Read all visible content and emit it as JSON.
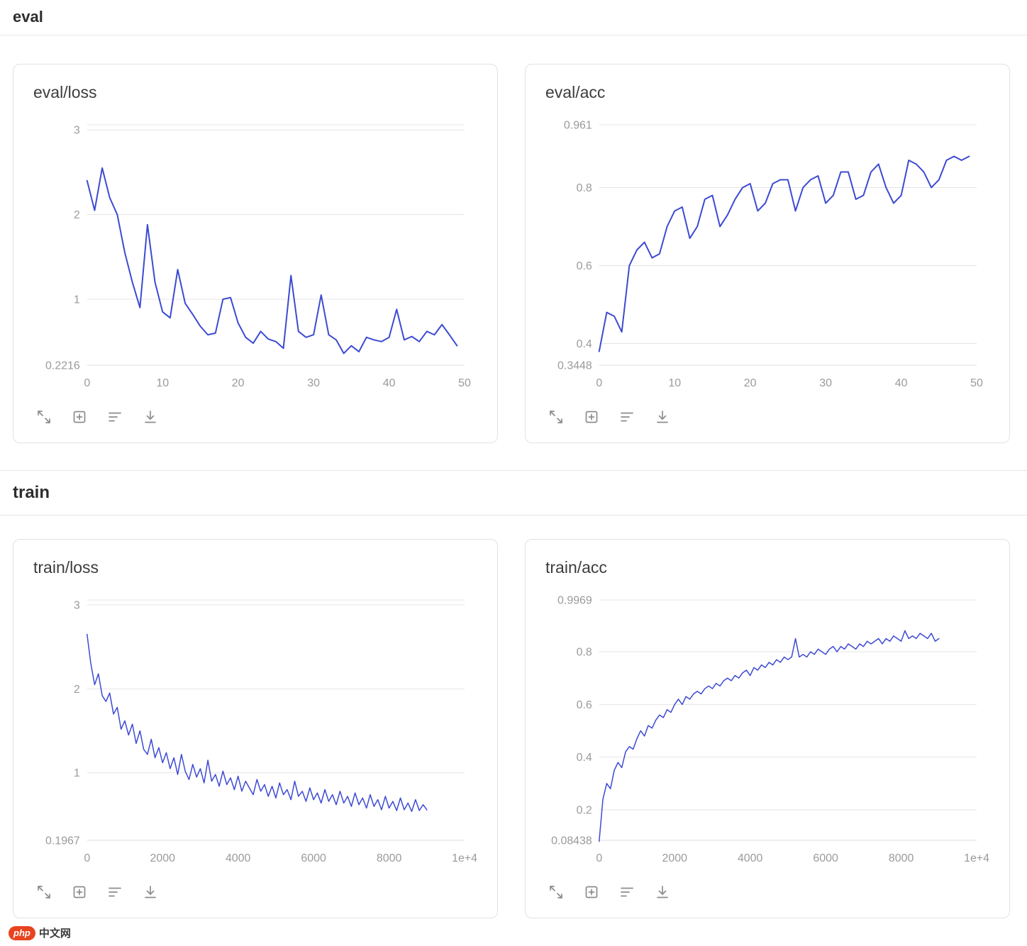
{
  "sections": [
    {
      "label": "eval"
    },
    {
      "label": "train"
    }
  ],
  "watermark": {
    "logo_text": "php",
    "site_text": "中文网"
  },
  "toolbar_icons": [
    "fullscreen",
    "add-panel",
    "filter",
    "download"
  ],
  "colors": {
    "line": "#3c4ad2",
    "grid": "#e4e4e4",
    "axis_label": "#9a9a9a",
    "card_border": "#e2e2e2",
    "title": "#3d3d3d"
  },
  "chart_data": [
    {
      "type": "line",
      "title": "eval/loss",
      "section": "eval",
      "x_start": 0,
      "x_step": 1,
      "x_range": [
        0,
        50
      ],
      "y_range": [
        0.2216,
        3.06
      ],
      "x_ticks": [
        {
          "v": 0,
          "label": "0"
        },
        {
          "v": 10,
          "label": "10"
        },
        {
          "v": 20,
          "label": "20"
        },
        {
          "v": 30,
          "label": "30"
        },
        {
          "v": 40,
          "label": "40"
        },
        {
          "v": 50,
          "label": "50"
        }
      ],
      "y_ticks": [
        {
          "v": 0.2216,
          "label": "0.2216"
        },
        {
          "v": 1,
          "label": "1"
        },
        {
          "v": 2,
          "label": "2"
        },
        {
          "v": 3,
          "label": "3"
        }
      ],
      "y": [
        2.4,
        2.05,
        2.55,
        2.2,
        2.0,
        1.55,
        1.2,
        0.9,
        1.88,
        1.2,
        0.85,
        0.78,
        1.35,
        0.95,
        0.82,
        0.68,
        0.58,
        0.6,
        1.0,
        1.02,
        0.72,
        0.55,
        0.48,
        0.62,
        0.53,
        0.5,
        0.42,
        1.28,
        0.62,
        0.55,
        0.58,
        1.05,
        0.58,
        0.52,
        0.36,
        0.45,
        0.38,
        0.55,
        0.52,
        0.5,
        0.55,
        0.88,
        0.52,
        0.56,
        0.5,
        0.62,
        0.58,
        0.7,
        0.58,
        0.45
      ]
    },
    {
      "type": "line",
      "title": "eval/acc",
      "section": "eval",
      "x_start": 0,
      "x_step": 1,
      "x_range": [
        0,
        50
      ],
      "y_range": [
        0.3448,
        0.961
      ],
      "x_ticks": [
        {
          "v": 0,
          "label": "0"
        },
        {
          "v": 10,
          "label": "10"
        },
        {
          "v": 20,
          "label": "20"
        },
        {
          "v": 30,
          "label": "30"
        },
        {
          "v": 40,
          "label": "40"
        },
        {
          "v": 50,
          "label": "50"
        }
      ],
      "y_ticks": [
        {
          "v": 0.3448,
          "label": "0.3448"
        },
        {
          "v": 0.4,
          "label": "0.4"
        },
        {
          "v": 0.6,
          "label": "0.6"
        },
        {
          "v": 0.8,
          "label": "0.8"
        },
        {
          "v": 0.961,
          "label": "0.961"
        }
      ],
      "y": [
        0.38,
        0.48,
        0.47,
        0.43,
        0.6,
        0.64,
        0.66,
        0.62,
        0.63,
        0.7,
        0.74,
        0.75,
        0.67,
        0.7,
        0.77,
        0.78,
        0.7,
        0.73,
        0.77,
        0.8,
        0.81,
        0.74,
        0.76,
        0.81,
        0.82,
        0.82,
        0.74,
        0.8,
        0.82,
        0.83,
        0.76,
        0.78,
        0.84,
        0.84,
        0.77,
        0.78,
        0.84,
        0.86,
        0.8,
        0.76,
        0.78,
        0.87,
        0.86,
        0.84,
        0.8,
        0.82,
        0.87,
        0.88,
        0.87,
        0.88
      ]
    },
    {
      "type": "line",
      "title": "train/loss",
      "section": "train",
      "x_start": 0,
      "x_step": 100,
      "x_range": [
        0,
        10000
      ],
      "y_range": [
        0.1967,
        3.06
      ],
      "x_ticks": [
        {
          "v": 0,
          "label": "0"
        },
        {
          "v": 2000,
          "label": "2000"
        },
        {
          "v": 4000,
          "label": "4000"
        },
        {
          "v": 6000,
          "label": "6000"
        },
        {
          "v": 8000,
          "label": "8000"
        },
        {
          "v": 10000,
          "label": "1e+4"
        }
      ],
      "y_ticks": [
        {
          "v": 0.1967,
          "label": "0.1967"
        },
        {
          "v": 1,
          "label": "1"
        },
        {
          "v": 2,
          "label": "2"
        },
        {
          "v": 3,
          "label": "3"
        }
      ],
      "y": [
        2.65,
        2.3,
        2.05,
        2.18,
        1.92,
        1.85,
        1.95,
        1.7,
        1.78,
        1.52,
        1.62,
        1.45,
        1.58,
        1.35,
        1.5,
        1.28,
        1.22,
        1.4,
        1.18,
        1.3,
        1.12,
        1.24,
        1.05,
        1.18,
        0.98,
        1.22,
        1.02,
        0.92,
        1.1,
        0.95,
        1.05,
        0.88,
        1.15,
        0.9,
        0.98,
        0.84,
        1.02,
        0.86,
        0.94,
        0.8,
        0.96,
        0.78,
        0.9,
        0.82,
        0.74,
        0.92,
        0.78,
        0.86,
        0.72,
        0.84,
        0.7,
        0.88,
        0.74,
        0.8,
        0.68,
        0.9,
        0.72,
        0.78,
        0.66,
        0.82,
        0.68,
        0.76,
        0.64,
        0.8,
        0.66,
        0.74,
        0.62,
        0.78,
        0.64,
        0.72,
        0.6,
        0.76,
        0.62,
        0.7,
        0.58,
        0.74,
        0.6,
        0.68,
        0.56,
        0.72,
        0.58,
        0.66,
        0.55,
        0.7,
        0.56,
        0.64,
        0.54,
        0.68,
        0.55,
        0.62,
        0.56
      ]
    },
    {
      "type": "line",
      "title": "train/acc",
      "section": "train",
      "x_start": 0,
      "x_step": 100,
      "x_range": [
        0,
        10000
      ],
      "y_range": [
        0.08438,
        0.9969
      ],
      "x_ticks": [
        {
          "v": 0,
          "label": "0"
        },
        {
          "v": 2000,
          "label": "2000"
        },
        {
          "v": 4000,
          "label": "4000"
        },
        {
          "v": 6000,
          "label": "6000"
        },
        {
          "v": 8000,
          "label": "8000"
        },
        {
          "v": 10000,
          "label": "1e+4"
        }
      ],
      "y_ticks": [
        {
          "v": 0.08438,
          "label": "0.08438"
        },
        {
          "v": 0.2,
          "label": "0.2"
        },
        {
          "v": 0.4,
          "label": "0.4"
        },
        {
          "v": 0.6,
          "label": "0.6"
        },
        {
          "v": 0.8,
          "label": "0.8"
        },
        {
          "v": 0.9969,
          "label": "0.9969"
        }
      ],
      "y": [
        0.08,
        0.24,
        0.3,
        0.28,
        0.35,
        0.38,
        0.36,
        0.42,
        0.44,
        0.43,
        0.47,
        0.5,
        0.48,
        0.52,
        0.51,
        0.54,
        0.56,
        0.55,
        0.58,
        0.57,
        0.6,
        0.62,
        0.6,
        0.63,
        0.62,
        0.64,
        0.65,
        0.64,
        0.66,
        0.67,
        0.66,
        0.68,
        0.67,
        0.69,
        0.7,
        0.69,
        0.71,
        0.7,
        0.72,
        0.73,
        0.71,
        0.74,
        0.73,
        0.75,
        0.74,
        0.76,
        0.75,
        0.77,
        0.76,
        0.78,
        0.77,
        0.78,
        0.85,
        0.78,
        0.79,
        0.78,
        0.8,
        0.79,
        0.81,
        0.8,
        0.79,
        0.81,
        0.82,
        0.8,
        0.82,
        0.81,
        0.83,
        0.82,
        0.81,
        0.83,
        0.82,
        0.84,
        0.83,
        0.84,
        0.85,
        0.83,
        0.85,
        0.84,
        0.86,
        0.85,
        0.84,
        0.88,
        0.85,
        0.86,
        0.85,
        0.87,
        0.86,
        0.85,
        0.87,
        0.84,
        0.85
      ]
    }
  ]
}
